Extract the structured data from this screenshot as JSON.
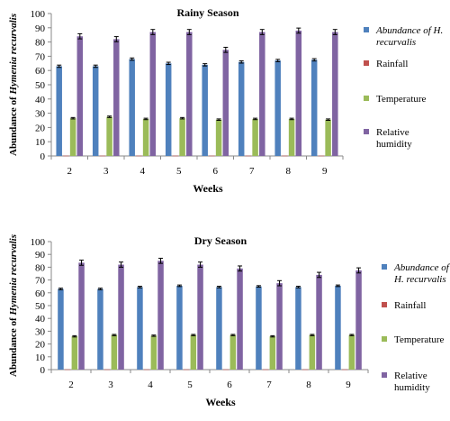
{
  "chart_data": [
    {
      "type": "bar",
      "title": "Rainy Season",
      "xlabel": "Weeks",
      "ylabel_prefix": "Abundance of ",
      "ylabel_species": "Hymenia recurvalis",
      "ylim": [
        0,
        100
      ],
      "yticks": [
        "0",
        "10",
        "20",
        "30",
        "40",
        "50",
        "60",
        "70",
        "80",
        "90",
        "100"
      ],
      "categories": [
        "2",
        "3",
        "4",
        "5",
        "6",
        "7",
        "8",
        "9"
      ],
      "legend_position": "right",
      "series": [
        {
          "name": "Abundance of H. recurvalis",
          "name_line1": "Abundance of H.",
          "name_line2": "recurvalis",
          "color": "#4F81BD",
          "values": [
            63,
            63,
            68,
            65,
            64,
            66,
            67,
            67.5
          ],
          "errors": [
            0.8,
            0.8,
            0.8,
            0.8,
            0.8,
            0.8,
            0.8,
            0.8
          ]
        },
        {
          "name": "Rainfall",
          "name_line1": "Rainfall",
          "name_line2": "",
          "color": "#C0504D",
          "values": [
            0.2,
            0.2,
            0.2,
            0.2,
            0.2,
            0.2,
            0.2,
            0.2
          ],
          "errors": [
            0,
            0,
            0,
            0,
            0,
            0,
            0,
            0
          ]
        },
        {
          "name": "Temperature",
          "name_line1": "Temperature",
          "name_line2": "",
          "color": "#9BBB59",
          "values": [
            26.5,
            27.5,
            26,
            26.5,
            25.5,
            26,
            26,
            25.5
          ],
          "errors": [
            0.5,
            0.5,
            0.5,
            0.5,
            0.5,
            0.5,
            0.5,
            0.5
          ]
        },
        {
          "name": "Relative humidity",
          "name_line1": "Relative",
          "name_line2": "humidity",
          "color": "#8064A2",
          "values": [
            84,
            82,
            87,
            87,
            74.5,
            87,
            88,
            87
          ],
          "errors": [
            1.8,
            1.8,
            1.8,
            1.8,
            1.8,
            1.8,
            1.8,
            1.8
          ]
        }
      ]
    },
    {
      "type": "bar",
      "title": "Dry Season",
      "xlabel": "Weeks",
      "ylabel_prefix": "Abundance of ",
      "ylabel_species": "Hymenia recurvalis",
      "ylim": [
        0,
        100
      ],
      "yticks": [
        "0",
        "10",
        "20",
        "30",
        "40",
        "50",
        "60",
        "70",
        "80",
        "90",
        "100"
      ],
      "categories": [
        "2",
        "3",
        "4",
        "5",
        "6",
        "7",
        "8",
        "9"
      ],
      "legend_position": "right",
      "series": [
        {
          "name": "Abundance of H. recurvalis",
          "name_line1": "Abundance of",
          "name_line2": "H. recurvalis",
          "color": "#4F81BD",
          "values": [
            63,
            63,
            64.5,
            65.5,
            64.5,
            65,
            64.5,
            65.5
          ],
          "errors": [
            0.6,
            0.6,
            0.6,
            0.6,
            0.6,
            0.6,
            0.6,
            0.6
          ]
        },
        {
          "name": "Rainfall",
          "name_line1": "Rainfall",
          "name_line2": "",
          "color": "#C0504D",
          "values": [
            0.2,
            0.2,
            0.2,
            0.2,
            0.2,
            0.2,
            0.2,
            0.2
          ],
          "errors": [
            0,
            0,
            0,
            0,
            0,
            0,
            0,
            0
          ]
        },
        {
          "name": "Temperature",
          "name_line1": "Temperature",
          "name_line2": "",
          "color": "#9BBB59",
          "values": [
            26,
            27,
            26.5,
            27,
            27,
            26,
            27,
            27
          ],
          "errors": [
            0.5,
            0.5,
            0.5,
            0.5,
            0.5,
            0.5,
            0.5,
            0.5
          ]
        },
        {
          "name": "Relative humidity",
          "name_line1": "Relative",
          "name_line2": "humidity",
          "color": "#8064A2",
          "values": [
            83.5,
            82,
            85,
            82,
            79,
            67.5,
            74,
            77.5
          ],
          "errors": [
            2,
            2,
            2,
            2,
            2,
            2,
            2,
            2
          ]
        }
      ]
    }
  ]
}
